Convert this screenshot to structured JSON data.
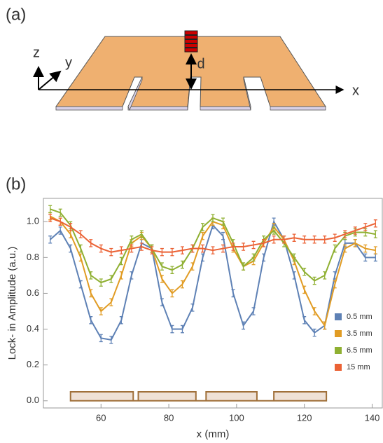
{
  "diagram": {
    "panel_label": "(a)",
    "axis_labels": {
      "z": "z",
      "y": "y",
      "x": "x",
      "d": "d"
    }
  },
  "chart_data": {
    "type": "line",
    "panel_label": "(b)",
    "x_label": "x (mm)",
    "y_label": "Lock- in Amplitude (a.u.)",
    "x": [
      45,
      48,
      51,
      54,
      57,
      60,
      63,
      66,
      69,
      72,
      75,
      78,
      81,
      84,
      87,
      90,
      93,
      96,
      99,
      102,
      105,
      108,
      111,
      114,
      117,
      120,
      123,
      126,
      129,
      132,
      135,
      138,
      141
    ],
    "series": [
      {
        "name": "0.5 mm",
        "color": "#5e81b5",
        "error": 0.02,
        "values": [
          0.9,
          0.95,
          0.85,
          0.65,
          0.45,
          0.35,
          0.34,
          0.45,
          0.7,
          0.88,
          0.85,
          0.55,
          0.4,
          0.4,
          0.52,
          0.8,
          0.98,
          0.92,
          0.6,
          0.42,
          0.5,
          0.8,
          1.0,
          0.9,
          0.7,
          0.45,
          0.38,
          0.42,
          0.7,
          0.88,
          0.88,
          0.8,
          0.8
        ]
      },
      {
        "name": "3.5 mm",
        "color": "#e19c24",
        "error": 0.02,
        "values": [
          1.03,
          1.0,
          0.93,
          0.8,
          0.6,
          0.5,
          0.55,
          0.7,
          0.88,
          0.92,
          0.85,
          0.68,
          0.6,
          0.65,
          0.75,
          0.92,
          1.0,
          0.98,
          0.85,
          0.75,
          0.78,
          0.88,
          0.97,
          0.9,
          0.78,
          0.62,
          0.5,
          0.42,
          0.65,
          0.85,
          0.88,
          0.85,
          0.84
        ]
      },
      {
        "name": "6.5 mm",
        "color": "#8fb032",
        "error": 0.02,
        "values": [
          1.07,
          1.05,
          0.98,
          0.85,
          0.7,
          0.66,
          0.68,
          0.78,
          0.9,
          0.93,
          0.85,
          0.75,
          0.73,
          0.76,
          0.85,
          0.97,
          1.02,
          1.0,
          0.88,
          0.75,
          0.8,
          0.9,
          0.95,
          0.88,
          0.8,
          0.72,
          0.67,
          0.7,
          0.85,
          0.92,
          0.94,
          0.94,
          0.93
        ]
      },
      {
        "name": "15 mm",
        "color": "#eb6235",
        "error": 0.02,
        "values": [
          1.02,
          1.0,
          0.97,
          0.93,
          0.88,
          0.85,
          0.83,
          0.84,
          0.85,
          0.86,
          0.84,
          0.83,
          0.83,
          0.84,
          0.85,
          0.85,
          0.84,
          0.85,
          0.86,
          0.86,
          0.87,
          0.88,
          0.9,
          0.9,
          0.91,
          0.9,
          0.9,
          0.9,
          0.91,
          0.93,
          0.95,
          0.97,
          0.99
        ]
      }
    ],
    "profile": {
      "color": "#a0703a",
      "x": [
        51,
        51,
        69.5,
        69.5,
        71,
        71,
        88,
        88,
        91,
        91,
        106,
        106,
        111,
        111,
        126.5,
        126.5
      ],
      "y": [
        0,
        0.05,
        0.05,
        0,
        0,
        0.05,
        0.05,
        0,
        0,
        0.05,
        0.05,
        0,
        0,
        0.05,
        0.05,
        0
      ]
    },
    "xlim": [
      43,
      143
    ],
    "ylim": [
      -0.04,
      1.13
    ],
    "xticks": [
      60,
      80,
      100,
      120,
      140
    ],
    "yticks": [
      {
        "value": 0,
        "label": "0.0"
      },
      0.2,
      0.4,
      0.6,
      0.8,
      {
        "value": 1,
        "label": "1.0"
      }
    ],
    "legend": "right"
  }
}
